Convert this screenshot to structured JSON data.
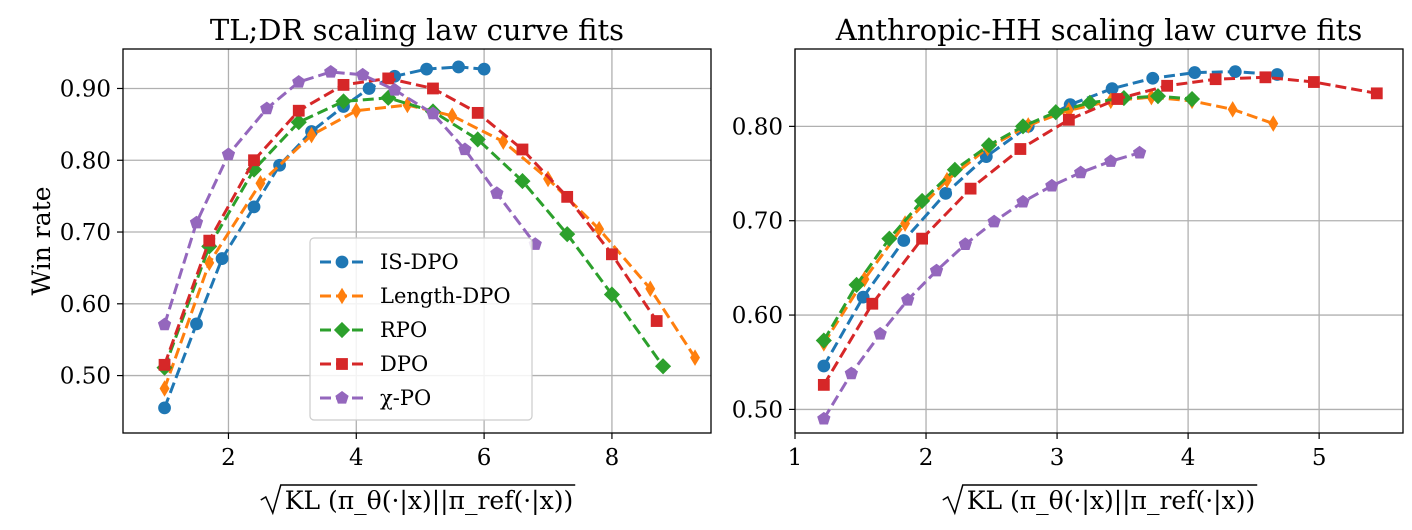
{
  "colors": {
    "IS-DPO": "#1f77b4",
    "Length-DPO": "#ff7f0e",
    "RPO": "#2ca02c",
    "DPO": "#d62728",
    "χ-PO": "#9467bd"
  },
  "markers": {
    "IS-DPO": "circle",
    "Length-DPO": "thin-diamond",
    "RPO": "diamond",
    "DPO": "square",
    "χ-PO": "pentagon"
  },
  "chart_data": [
    {
      "type": "line",
      "title": "TL;DR scaling law curve fits",
      "xlabel": "√KL (π_θ(·|x)||π_ref(·|x))",
      "ylabel": "Win rate",
      "xlim": [
        0.35,
        9.55
      ],
      "ylim": [
        0.42,
        0.955
      ],
      "xticks": [
        2,
        4,
        6,
        8
      ],
      "yticks": [
        0.5,
        0.6,
        0.7,
        0.8,
        0.9
      ],
      "xtick_labels": [
        "2",
        "4",
        "6",
        "8"
      ],
      "ytick_labels": [
        "0.50",
        "0.60",
        "0.70",
        "0.80",
        "0.90"
      ],
      "grid": true,
      "legend": {
        "placement": "lower center",
        "entries": [
          "IS-DPO",
          "Length-DPO",
          "RPO",
          "DPO",
          "χ-PO"
        ]
      },
      "series": [
        {
          "name": "IS-DPO",
          "x": [
            1.0,
            1.5,
            1.9,
            2.4,
            2.8,
            3.3,
            3.8,
            4.2,
            4.6,
            5.1,
            5.6,
            6.0
          ],
          "y": [
            0.455,
            0.572,
            0.663,
            0.735,
            0.793,
            0.84,
            0.875,
            0.9,
            0.917,
            0.927,
            0.93,
            0.927
          ]
        },
        {
          "name": "Length-DPO",
          "x": [
            1.0,
            1.7,
            2.5,
            3.3,
            4.0,
            4.8,
            5.5,
            6.3,
            7.0,
            7.8,
            8.6,
            9.3
          ],
          "y": [
            0.482,
            0.657,
            0.768,
            0.835,
            0.869,
            0.877,
            0.862,
            0.826,
            0.774,
            0.704,
            0.621,
            0.525
          ]
        },
        {
          "name": "RPO",
          "x": [
            1.0,
            1.7,
            2.4,
            3.1,
            3.8,
            4.5,
            5.2,
            5.9,
            6.6,
            7.3,
            8.0,
            8.8
          ],
          "y": [
            0.511,
            0.68,
            0.787,
            0.853,
            0.882,
            0.887,
            0.868,
            0.829,
            0.771,
            0.697,
            0.613,
            0.513
          ]
        },
        {
          "name": "DPO",
          "x": [
            1.0,
            1.7,
            2.4,
            3.1,
            3.8,
            4.5,
            5.2,
            5.9,
            6.6,
            7.3,
            8.0,
            8.7
          ],
          "y": [
            0.515,
            0.688,
            0.8,
            0.869,
            0.905,
            0.914,
            0.9,
            0.866,
            0.815,
            0.749,
            0.669,
            0.576
          ]
        },
        {
          "name": "χ-PO",
          "x": [
            1.0,
            1.5,
            2.0,
            2.6,
            3.1,
            3.6,
            4.1,
            4.6,
            5.2,
            5.7,
            6.2,
            6.8
          ],
          "y": [
            0.571,
            0.713,
            0.808,
            0.872,
            0.909,
            0.923,
            0.919,
            0.898,
            0.865,
            0.815,
            0.754,
            0.683
          ]
        }
      ]
    },
    {
      "type": "line",
      "title": "Anthropic-HH scaling law curve fits",
      "xlabel": "√KL (π_θ(·|x)||π_ref(·|x))",
      "ylabel": "",
      "xlim": [
        1.0,
        5.64
      ],
      "ylim": [
        0.475,
        0.882
      ],
      "xticks": [
        1,
        2,
        3,
        4,
        5
      ],
      "yticks": [
        0.5,
        0.6,
        0.7,
        0.8
      ],
      "xtick_labels": [
        "1",
        "2",
        "3",
        "4",
        "5"
      ],
      "ytick_labels": [
        "0.50",
        "0.60",
        "0.70",
        "0.80"
      ],
      "grid": true,
      "series": [
        {
          "name": "IS-DPO",
          "x": [
            1.22,
            1.52,
            1.83,
            2.15,
            2.46,
            2.78,
            3.1,
            3.42,
            3.73,
            4.05,
            4.36,
            4.68
          ],
          "y": [
            0.546,
            0.619,
            0.679,
            0.729,
            0.768,
            0.8,
            0.823,
            0.84,
            0.851,
            0.857,
            0.858,
            0.855
          ]
        },
        {
          "name": "Length-DPO",
          "x": [
            1.22,
            1.53,
            1.84,
            2.16,
            2.47,
            2.78,
            3.09,
            3.41,
            3.72,
            4.03,
            4.34,
            4.65
          ],
          "y": [
            0.57,
            0.638,
            0.697,
            0.743,
            0.777,
            0.801,
            0.817,
            0.827,
            0.831,
            0.827,
            0.818,
            0.803
          ]
        },
        {
          "name": "RPO",
          "x": [
            1.22,
            1.47,
            1.72,
            1.97,
            2.22,
            2.48,
            2.74,
            2.99,
            3.25,
            3.51,
            3.77,
            4.03
          ],
          "y": [
            0.573,
            0.632,
            0.681,
            0.721,
            0.754,
            0.78,
            0.8,
            0.815,
            0.825,
            0.83,
            0.832,
            0.829
          ]
        },
        {
          "name": "DPO",
          "x": [
            1.22,
            1.59,
            1.97,
            2.34,
            2.72,
            3.09,
            3.46,
            3.84,
            4.21,
            4.59,
            4.96,
            5.44
          ],
          "y": [
            0.526,
            0.612,
            0.681,
            0.734,
            0.776,
            0.807,
            0.829,
            0.843,
            0.85,
            0.852,
            0.847,
            0.835
          ]
        },
        {
          "name": "χ-PO",
          "x": [
            1.22,
            1.43,
            1.65,
            1.86,
            2.08,
            2.3,
            2.52,
            2.74,
            2.96,
            3.18,
            3.41,
            3.63
          ],
          "y": [
            0.49,
            0.538,
            0.58,
            0.616,
            0.647,
            0.675,
            0.699,
            0.72,
            0.737,
            0.751,
            0.763,
            0.772
          ]
        }
      ]
    }
  ]
}
